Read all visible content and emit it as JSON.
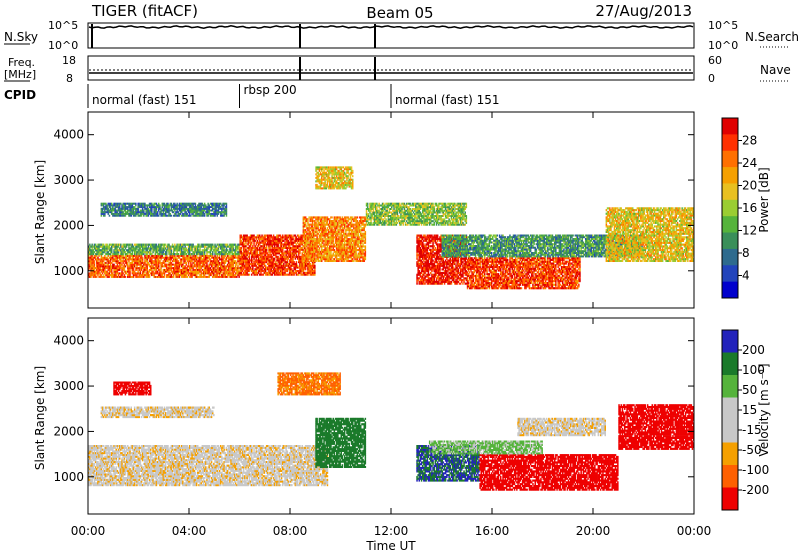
{
  "header": {
    "radar": "TIGER (fitACF)",
    "beam": "Beam 05",
    "date": "27/Aug/2013"
  },
  "top_panels": {
    "nsky_label": "N.Sky",
    "nsky_ticks": [
      "10^5",
      "10^0"
    ],
    "nsearch_label": "N.Search",
    "freq_label": "Freq.",
    "freq_unit": "[MHz]",
    "freq_left_ticks": [
      "18",
      "8"
    ],
    "nave_label": "Nave",
    "nave_right_ticks": [
      "60",
      "0"
    ],
    "cpid_label": "CPID",
    "cpid_segments": [
      {
        "label": "normal (fast) 151",
        "start_hour": 0,
        "end_hour": 6
      },
      {
        "label": "rbsp 200",
        "start_hour": 6,
        "end_hour": 12
      },
      {
        "label": "normal (fast) 151",
        "start_hour": 12,
        "end_hour": 24
      }
    ]
  },
  "colorbars": {
    "power": {
      "label": "Power [dB]",
      "ticks": [
        "28",
        "24",
        "20",
        "16",
        "12",
        "8",
        "4"
      ],
      "colors": [
        "#0000cc",
        "#2244bb",
        "#2e6b8e",
        "#3a8f5a",
        "#55b33b",
        "#9acd32",
        "#e8c020",
        "#f5a000",
        "#ff7000",
        "#ff3000",
        "#e00000"
      ]
    },
    "velocity": {
      "label": "Velocity [m s⁻¹]",
      "ticks": [
        "200",
        "100",
        "50",
        "15",
        "-15",
        "-50",
        "-100",
        "-200"
      ],
      "colors": [
        "#2222bb",
        "#1a7a2a",
        "#55b33b",
        "#c8c8c8",
        "#c8c8c8",
        "#f5a000",
        "#ff6000",
        "#ee0000"
      ]
    }
  },
  "axes": {
    "ylabel": "Slant Range [km]",
    "yticks": [
      "1000",
      "2000",
      "3000",
      "4000"
    ],
    "xlabel": "Time UT",
    "xticks": [
      "00:00",
      "04:00",
      "08:00",
      "12:00",
      "16:00",
      "20:00",
      "00:00"
    ]
  },
  "chart_data": [
    {
      "type": "heatmap",
      "title": "",
      "quantity": "Power",
      "xlabel": "Time UT",
      "ylabel": "Slant Range [km]",
      "xlim_hours": [
        0,
        24
      ],
      "ylim_km": [
        180,
        4500
      ],
      "color_scale_db": [
        0,
        30
      ],
      "regions": [
        {
          "t0": 0.0,
          "t1": 6.0,
          "r0": 850,
          "r1": 1350,
          "value": 24
        },
        {
          "t0": 0.0,
          "t1": 6.0,
          "r0": 1350,
          "r1": 1600,
          "value": 12
        },
        {
          "t0": 0.5,
          "t1": 5.5,
          "r0": 2200,
          "r1": 2500,
          "value": 8
        },
        {
          "t0": 6.0,
          "t1": 9.0,
          "r0": 900,
          "r1": 1800,
          "value": 26
        },
        {
          "t0": 8.5,
          "t1": 11.0,
          "r0": 1200,
          "r1": 2200,
          "value": 22
        },
        {
          "t0": 9.0,
          "t1": 10.5,
          "r0": 2800,
          "r1": 3300,
          "value": 18
        },
        {
          "t0": 13.0,
          "t1": 15.0,
          "r0": 700,
          "r1": 1800,
          "value": 28
        },
        {
          "t0": 15.0,
          "t1": 19.5,
          "r0": 600,
          "r1": 1300,
          "value": 26
        },
        {
          "t0": 14.0,
          "t1": 22.0,
          "r0": 1300,
          "r1": 1800,
          "value": 10
        },
        {
          "t0": 20.5,
          "t1": 24.0,
          "r0": 1200,
          "r1": 2400,
          "value": 18
        },
        {
          "t0": 11.0,
          "t1": 15.0,
          "r0": 2000,
          "r1": 2500,
          "value": 14
        }
      ]
    },
    {
      "type": "heatmap",
      "title": "",
      "quantity": "Velocity",
      "xlabel": "Time UT",
      "ylabel": "Slant Range [km]",
      "xlim_hours": [
        0,
        24
      ],
      "ylim_km": [
        180,
        4500
      ],
      "color_scale_ms": [
        -200,
        200
      ],
      "regions": [
        {
          "t0": 0.0,
          "t1": 9.5,
          "r0": 800,
          "r1": 1700,
          "value": 0
        },
        {
          "t0": 0.5,
          "t1": 5.0,
          "r0": 2300,
          "r1": 2550,
          "value": 0
        },
        {
          "t0": 1.0,
          "t1": 2.5,
          "r0": 2800,
          "r1": 3100,
          "value": -180
        },
        {
          "t0": 9.0,
          "t1": 11.0,
          "r0": 1200,
          "r1": 2300,
          "value": 150
        },
        {
          "t0": 7.5,
          "t1": 10.0,
          "r0": 2800,
          "r1": 3300,
          "value": -60
        },
        {
          "t0": 13.0,
          "t1": 15.5,
          "r0": 900,
          "r1": 1700,
          "value": 200
        },
        {
          "t0": 15.5,
          "t1": 21.0,
          "r0": 700,
          "r1": 1500,
          "value": -150
        },
        {
          "t0": 13.5,
          "t1": 18.0,
          "r0": 1500,
          "r1": 1800,
          "value": 60
        },
        {
          "t0": 21.0,
          "t1": 24.0,
          "r0": 1600,
          "r1": 2600,
          "value": -200
        },
        {
          "t0": 17.0,
          "t1": 20.5,
          "r0": 1900,
          "r1": 2300,
          "value": 0
        }
      ]
    }
  ]
}
